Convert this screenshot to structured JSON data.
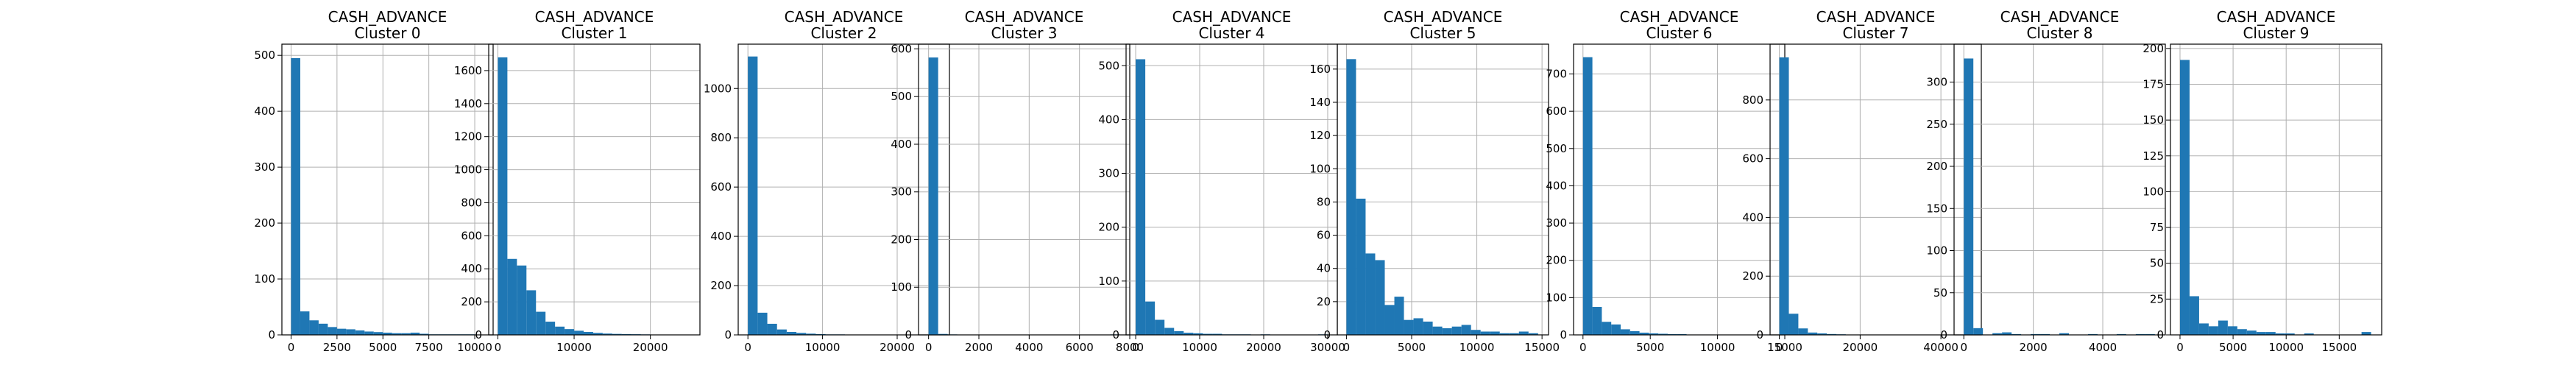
{
  "chart_data": [
    {
      "type": "bar",
      "title": [
        "CASH_ADVANCE",
        "Cluster 0"
      ],
      "xlim": [
        -500,
        11000
      ],
      "ylim": [
        0,
        520
      ],
      "xticks": [
        0,
        2500,
        5000,
        7500,
        10000
      ],
      "yticks": [
        0,
        100,
        200,
        300,
        400,
        500
      ],
      "bin_edges": [
        0,
        500,
        1000,
        1500,
        2000,
        2500,
        3000,
        3500,
        4000,
        4500,
        5000,
        5500,
        6000,
        6500,
        7000,
        7500,
        8000,
        8500,
        9000,
        9500,
        10000
      ],
      "counts": [
        495,
        42,
        26,
        20,
        14,
        11,
        10,
        8,
        6,
        5,
        4,
        3,
        3,
        4,
        2,
        1,
        1,
        1,
        1,
        1
      ],
      "grid": true,
      "color": "#1f77b4"
    },
    {
      "type": "bar",
      "title": [
        "CASH_ADVANCE",
        "Cluster 1"
      ],
      "xlim": [
        -1200,
        26500
      ],
      "ylim": [
        0,
        1760
      ],
      "xticks": [
        0,
        10000,
        20000
      ],
      "yticks": [
        0,
        200,
        400,
        600,
        800,
        1000,
        1200,
        1400,
        1600
      ],
      "bin_edges": [
        0,
        1250,
        2500,
        3750,
        5000,
        6250,
        7500,
        8750,
        10000,
        11250,
        12500,
        13750,
        15000,
        16250,
        17500,
        18750,
        20000,
        21250,
        22500,
        23750,
        25000
      ],
      "counts": [
        1680,
        460,
        420,
        270,
        140,
        80,
        50,
        35,
        25,
        18,
        12,
        8,
        6,
        5,
        4,
        3,
        2,
        2,
        1,
        1
      ],
      "grid": true,
      "color": "#1f77b4"
    },
    {
      "type": "bar",
      "title": [
        "CASH_ADVANCE",
        "Cluster 2"
      ],
      "xlim": [
        -1300,
        27000
      ],
      "ylim": [
        0,
        1180
      ],
      "xticks": [
        0,
        10000,
        20000
      ],
      "yticks": [
        0,
        200,
        400,
        600,
        800,
        1000
      ],
      "bin_edges": [
        0,
        1300,
        2600,
        3900,
        5200,
        6500,
        7800,
        9100,
        10400,
        11700,
        13000,
        14300,
        15600,
        16900,
        18200,
        19500,
        20800,
        22100,
        23400,
        24700,
        26000
      ],
      "counts": [
        1130,
        90,
        45,
        22,
        12,
        8,
        5,
        3,
        2,
        2,
        1,
        1,
        1,
        1,
        0,
        0,
        0,
        0,
        0,
        1
      ],
      "grid": true,
      "color": "#1f77b4"
    },
    {
      "type": "bar",
      "title": [
        "CASH_ADVANCE",
        "Cluster 3"
      ],
      "xlim": [
        -400,
        8000
      ],
      "ylim": [
        0,
        610
      ],
      "xticks": [
        0,
        2000,
        4000,
        6000,
        8000
      ],
      "yticks": [
        0,
        100,
        200,
        300,
        400,
        500,
        600
      ],
      "bin_edges": [
        0,
        380,
        760,
        1140,
        1520,
        1900,
        2280,
        2660,
        3040,
        3420,
        3800,
        4180,
        4560,
        4940,
        5320,
        5700,
        6080,
        6460,
        6840,
        7220,
        7600
      ],
      "counts": [
        582,
        2,
        1,
        0,
        0,
        0,
        0,
        0,
        0,
        0,
        0,
        0,
        0,
        0,
        0,
        0,
        0,
        0,
        0,
        1
      ],
      "grid": true,
      "color": "#1f77b4"
    },
    {
      "type": "bar",
      "title": [
        "CASH_ADVANCE",
        "Cluster 4"
      ],
      "xlim": [
        -1500,
        31500
      ],
      "ylim": [
        0,
        540
      ],
      "xticks": [
        0,
        10000,
        20000,
        30000
      ],
      "yticks": [
        0,
        100,
        200,
        300,
        400,
        500
      ],
      "bin_edges": [
        0,
        1500,
        3000,
        4500,
        6000,
        7500,
        9000,
        10500,
        12000,
        13500,
        15000,
        16500,
        18000,
        19500,
        21000,
        22500,
        24000,
        25500,
        27000,
        28500,
        30000
      ],
      "counts": [
        512,
        62,
        28,
        13,
        7,
        4,
        3,
        2,
        2,
        1,
        1,
        1,
        0,
        1,
        0,
        0,
        0,
        0,
        0,
        1
      ],
      "grid": true,
      "color": "#1f77b4"
    },
    {
      "type": "bar",
      "title": [
        "CASH_ADVANCE",
        "Cluster 5"
      ],
      "xlim": [
        -700,
        15500
      ],
      "ylim": [
        0,
        175
      ],
      "xticks": [
        0,
        5000,
        10000,
        15000
      ],
      "yticks": [
        0,
        20,
        40,
        60,
        80,
        100,
        120,
        140,
        160
      ],
      "bin_edges": [
        0,
        735,
        1470,
        2205,
        2940,
        3675,
        4410,
        5145,
        5880,
        6615,
        7350,
        8085,
        8820,
        9555,
        10290,
        11025,
        11760,
        12495,
        13230,
        13965,
        14700
      ],
      "counts": [
        166,
        82,
        49,
        45,
        18,
        23,
        9,
        10,
        8,
        5,
        4,
        5,
        6,
        3,
        2,
        2,
        1,
        1,
        2,
        1
      ],
      "grid": true,
      "color": "#1f77b4"
    },
    {
      "type": "bar",
      "title": [
        "CASH_ADVANCE",
        "Cluster 6"
      ],
      "xlim": [
        -700,
        15000
      ],
      "ylim": [
        0,
        780
      ],
      "xticks": [
        0,
        5000,
        10000,
        15000
      ],
      "yticks": [
        0,
        100,
        200,
        300,
        400,
        500,
        600,
        700
      ],
      "bin_edges": [
        0,
        700,
        1400,
        2100,
        2800,
        3500,
        4200,
        4900,
        5600,
        6300,
        7000,
        7700,
        8400,
        9100,
        9800,
        10500,
        11200,
        11900,
        12600,
        13300,
        14000
      ],
      "counts": [
        745,
        75,
        35,
        28,
        15,
        10,
        6,
        4,
        3,
        2,
        2,
        1,
        1,
        1,
        0,
        0,
        0,
        0,
        0,
        1
      ],
      "grid": true,
      "color": "#1f77b4"
    },
    {
      "type": "bar",
      "title": [
        "CASH_ADVANCE",
        "Cluster 7"
      ],
      "xlim": [
        -2300,
        50000
      ],
      "ylim": [
        0,
        990
      ],
      "xticks": [
        0,
        20000,
        40000
      ],
      "yticks": [
        0,
        200,
        400,
        600,
        800
      ],
      "bin_edges": [
        0,
        2350,
        4700,
        7050,
        9400,
        11750,
        14100,
        16450,
        18800,
        21150,
        23500,
        25850,
        28200,
        30550,
        32900,
        35250,
        37600,
        39950,
        42300,
        44650,
        47000
      ],
      "counts": [
        945,
        72,
        22,
        8,
        5,
        3,
        2,
        1,
        1,
        1,
        0,
        0,
        0,
        0,
        0,
        0,
        0,
        0,
        0,
        1
      ],
      "grid": true,
      "color": "#1f77b4"
    },
    {
      "type": "bar",
      "title": [
        "CASH_ADVANCE",
        "Cluster 8"
      ],
      "xlim": [
        -280,
        5800
      ],
      "ylim": [
        0,
        345
      ],
      "xticks": [
        0,
        2000,
        4000
      ],
      "yticks": [
        0,
        50,
        100,
        150,
        200,
        250,
        300
      ],
      "bin_edges": [
        0,
        275,
        550,
        825,
        1100,
        1375,
        1650,
        1925,
        2200,
        2475,
        2750,
        3025,
        3300,
        3575,
        3850,
        4125,
        4400,
        4675,
        4950,
        5225,
        5500
      ],
      "counts": [
        328,
        8,
        0,
        2,
        3,
        1,
        0,
        1,
        1,
        0,
        2,
        0,
        0,
        1,
        0,
        0,
        1,
        0,
        1,
        1
      ],
      "grid": true,
      "color": "#1f77b4"
    },
    {
      "type": "bar",
      "title": [
        "CASH_ADVANCE",
        "Cluster 9"
      ],
      "xlim": [
        -900,
        19000
      ],
      "ylim": [
        0,
        203
      ],
      "xticks": [
        0,
        5000,
        10000,
        15000
      ],
      "yticks": [
        0,
        25,
        50,
        75,
        100,
        125,
        150,
        175,
        200
      ],
      "bin_edges": [
        0,
        900,
        1800,
        2700,
        3600,
        4500,
        5400,
        6300,
        7200,
        8100,
        9000,
        9900,
        10800,
        11700,
        12600,
        13500,
        14400,
        15300,
        16200,
        17100,
        18000
      ],
      "counts": [
        192,
        27,
        8,
        6,
        10,
        6,
        4,
        3,
        2,
        2,
        1,
        1,
        0,
        1,
        0,
        0,
        0,
        0,
        0,
        2
      ],
      "grid": true,
      "color": "#1f77b4"
    }
  ]
}
